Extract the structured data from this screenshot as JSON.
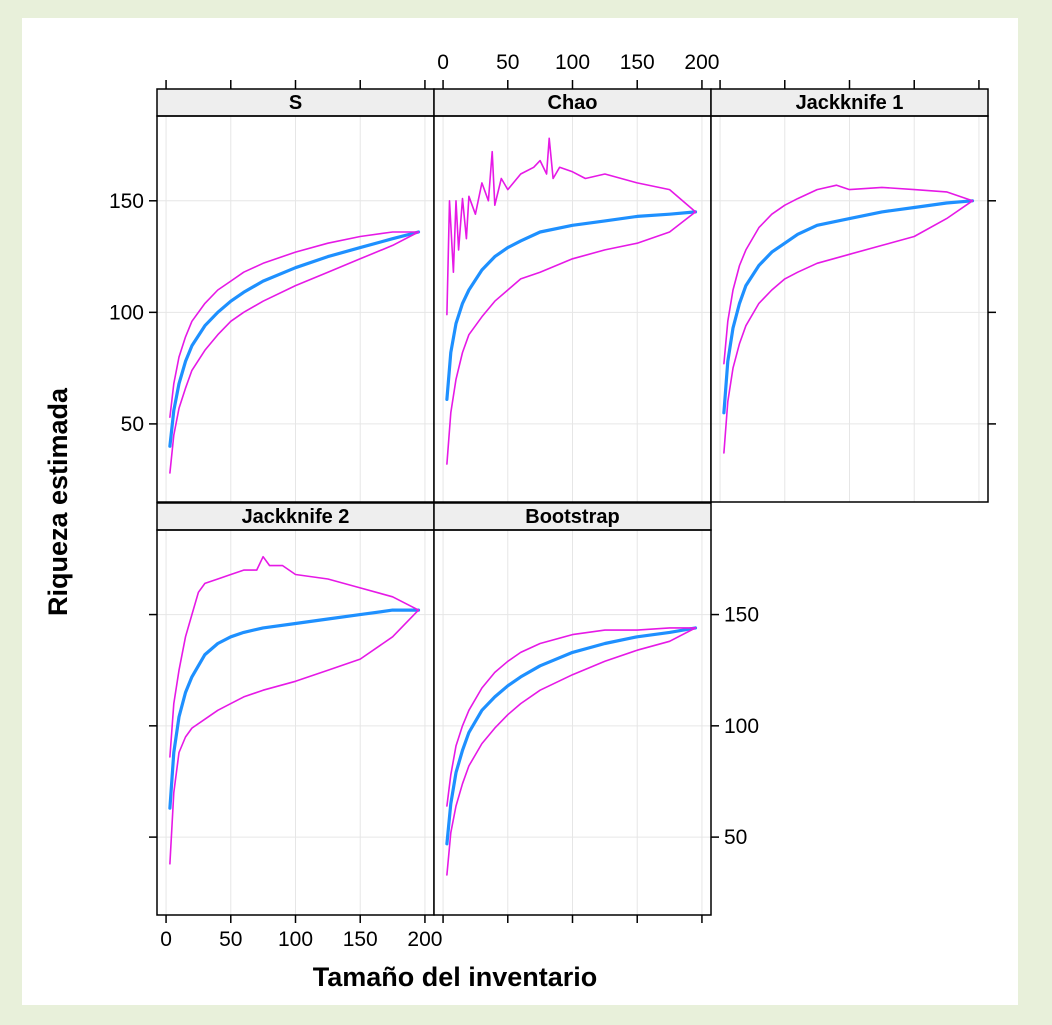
{
  "chart_data": {
    "type": "line",
    "xlabel": "Tamaño del inventario",
    "ylabel": "Riqueza estimada",
    "xlim": [
      -7,
      207
    ],
    "ylim": [
      15,
      188
    ],
    "x_ticks": [
      0,
      50,
      100,
      150,
      200
    ],
    "y_ticks": [
      50,
      100,
      150
    ],
    "grid": true,
    "colors": {
      "mean": "#1e90ff",
      "band": "#e619e6",
      "grid": "#e6e6e6",
      "strip": "#eeeeee"
    },
    "panels": [
      {
        "name": "S",
        "series": [
          {
            "role": "mean",
            "x": [
              3,
              6,
              10,
              15,
              20,
              30,
              40,
              50,
              60,
              75,
              100,
              125,
              150,
              175,
              195
            ],
            "y": [
              40,
              56,
              68,
              78,
              85,
              94,
              100,
              105,
              109,
              114,
              120,
              125,
              129,
              133,
              136
            ]
          },
          {
            "role": "upper",
            "x": [
              3,
              6,
              10,
              15,
              20,
              30,
              40,
              50,
              60,
              75,
              100,
              125,
              150,
              175,
              195
            ],
            "y": [
              53,
              68,
              80,
              89,
              96,
              104,
              110,
              114,
              118,
              122,
              127,
              131,
              134,
              136,
              136
            ]
          },
          {
            "role": "lower",
            "x": [
              3,
              6,
              10,
              15,
              20,
              30,
              40,
              50,
              60,
              75,
              100,
              125,
              150,
              175,
              195
            ],
            "y": [
              28,
              45,
              57,
              66,
              74,
              83,
              90,
              96,
              100,
              105,
              112,
              118,
              124,
              130,
              136
            ]
          }
        ]
      },
      {
        "name": "Chao",
        "series": [
          {
            "role": "mean",
            "x": [
              3,
              6,
              10,
              15,
              20,
              30,
              40,
              50,
              60,
              75,
              100,
              125,
              150,
              175,
              195
            ],
            "y": [
              61,
              82,
              95,
              104,
              110,
              119,
              125,
              129,
              132,
              136,
              139,
              141,
              143,
              144,
              145
            ]
          },
          {
            "role": "upper",
            "x": [
              3,
              5,
              8,
              10,
              12,
              15,
              18,
              20,
              25,
              30,
              35,
              38,
              40,
              45,
              50,
              60,
              70,
              75,
              80,
              82,
              85,
              90,
              100,
              110,
              125,
              150,
              175,
              195
            ],
            "y": [
              99,
              150,
              118,
              150,
              128,
              151,
              133,
              152,
              144,
              158,
              150,
              172,
              148,
              160,
              155,
              162,
              165,
              168,
              162,
              178,
              160,
              165,
              163,
              160,
              162,
              158,
              155,
              145
            ]
          },
          {
            "role": "lower",
            "x": [
              3,
              6,
              10,
              15,
              20,
              30,
              40,
              50,
              60,
              75,
              100,
              125,
              150,
              175,
              195
            ],
            "y": [
              32,
              55,
              70,
              82,
              90,
              98,
              105,
              110,
              115,
              118,
              124,
              128,
              131,
              136,
              145
            ]
          }
        ]
      },
      {
        "name": "Jackknife 1",
        "series": [
          {
            "role": "mean",
            "x": [
              3,
              6,
              10,
              15,
              20,
              30,
              40,
              50,
              60,
              75,
              100,
              125,
              150,
              175,
              195
            ],
            "y": [
              55,
              78,
              93,
              104,
              112,
              121,
              127,
              131,
              135,
              139,
              142,
              145,
              147,
              149,
              150
            ]
          },
          {
            "role": "upper",
            "x": [
              3,
              6,
              10,
              15,
              20,
              30,
              40,
              50,
              60,
              75,
              90,
              100,
              125,
              150,
              175,
              195
            ],
            "y": [
              77,
              96,
              110,
              121,
              128,
              138,
              144,
              148,
              151,
              155,
              157,
              155,
              156,
              155,
              154,
              150
            ]
          },
          {
            "role": "lower",
            "x": [
              3,
              6,
              10,
              15,
              20,
              30,
              40,
              50,
              60,
              75,
              100,
              125,
              150,
              175,
              195
            ],
            "y": [
              37,
              60,
              75,
              86,
              94,
              104,
              110,
              115,
              118,
              122,
              126,
              130,
              134,
              142,
              150
            ]
          }
        ]
      },
      {
        "name": "Jackknife 2",
        "series": [
          {
            "role": "mean",
            "x": [
              3,
              6,
              10,
              15,
              20,
              30,
              40,
              50,
              60,
              75,
              100,
              125,
              150,
              175,
              195
            ],
            "y": [
              63,
              88,
              104,
              115,
              122,
              132,
              137,
              140,
              142,
              144,
              146,
              148,
              150,
              152,
              152
            ]
          },
          {
            "role": "upper",
            "x": [
              3,
              6,
              10,
              15,
              20,
              25,
              30,
              40,
              50,
              60,
              70,
              75,
              80,
              90,
              100,
              125,
              150,
              175,
              195
            ],
            "y": [
              86,
              110,
              125,
              140,
              150,
              160,
              164,
              166,
              168,
              170,
              170,
              176,
              172,
              172,
              168,
              166,
              162,
              158,
              152
            ]
          },
          {
            "role": "lower",
            "x": [
              3,
              6,
              10,
              15,
              20,
              30,
              40,
              50,
              60,
              75,
              100,
              125,
              150,
              175,
              195
            ],
            "y": [
              38,
              70,
              88,
              95,
              99,
              103,
              107,
              110,
              113,
              116,
              120,
              125,
              130,
              140,
              152
            ]
          }
        ]
      },
      {
        "name": "Bootstrap",
        "series": [
          {
            "role": "mean",
            "x": [
              3,
              6,
              10,
              15,
              20,
              30,
              40,
              50,
              60,
              75,
              100,
              125,
              150,
              175,
              195
            ],
            "y": [
              47,
              65,
              79,
              89,
              97,
              107,
              113,
              118,
              122,
              127,
              133,
              137,
              140,
              142,
              144
            ]
          },
          {
            "role": "upper",
            "x": [
              3,
              6,
              10,
              15,
              20,
              30,
              40,
              50,
              60,
              75,
              100,
              125,
              150,
              175,
              195
            ],
            "y": [
              64,
              78,
              91,
              100,
              107,
              117,
              124,
              129,
              133,
              137,
              141,
              143,
              143,
              144,
              144
            ]
          },
          {
            "role": "lower",
            "x": [
              3,
              6,
              10,
              15,
              20,
              30,
              40,
              50,
              60,
              75,
              100,
              125,
              150,
              175,
              195
            ],
            "y": [
              33,
              52,
              64,
              74,
              82,
              92,
              99,
              105,
              110,
              116,
              123,
              129,
              134,
              138,
              144
            ]
          }
        ]
      }
    ]
  }
}
